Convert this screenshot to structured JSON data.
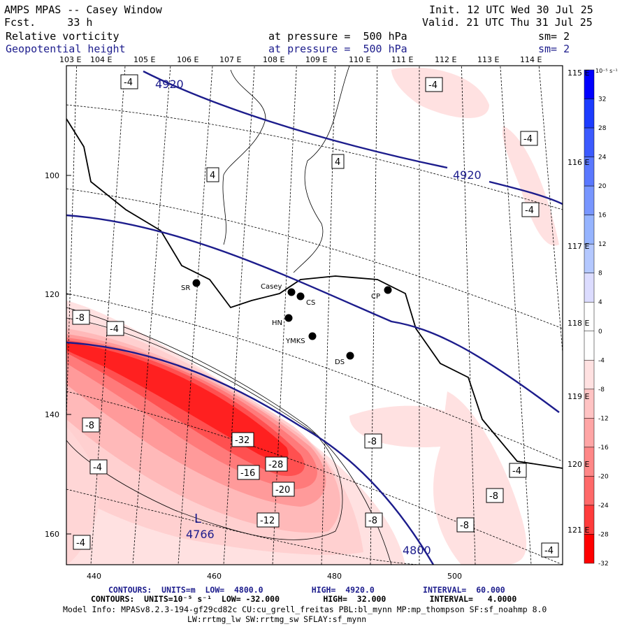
{
  "header": {
    "title": "AMPS MPAS -- Casey Window",
    "forecast": "Fcst.     33 h",
    "init": "Init. 12 UTC Wed 30 Jul 25",
    "valid": "Valid. 21 UTC Thu 31 Jul 25",
    "field1": "Relative vorticity",
    "field1_level": "at pressure =  500 hPa",
    "field1_smooth": "sm= 2",
    "field2": "Geopotential height",
    "field2_level": "at pressure =  500 hPa",
    "field2_smooth": "sm= 2"
  },
  "axes": {
    "top_longitudes": [
      "103 E",
      "104 E",
      "105 E",
      "106 E",
      "107 E",
      "108 E",
      "109 E",
      "110 E",
      "111 E",
      "112 E",
      "113 E",
      "114 E"
    ],
    "right_longitudes": [
      "115 E",
      "116 E",
      "117 E",
      "118 E",
      "119 E",
      "120 E",
      "121 E"
    ],
    "y_ticks": [
      "100",
      "120",
      "140",
      "160"
    ],
    "x_ticks": [
      "440",
      "460",
      "480",
      "500"
    ]
  },
  "colorbar": {
    "unit": "10⁻⁵ s⁻¹",
    "labels": [
      "32",
      "28",
      "24",
      "20",
      "16",
      "12",
      "8",
      "4",
      "0",
      "-4",
      "-8",
      "-12",
      "-16",
      "-20",
      "-24",
      "-28",
      "-32"
    ],
    "colors": [
      "#0000ff",
      "#1c3cff",
      "#3c5aff",
      "#5a78ff",
      "#7896ff",
      "#96b4ff",
      "#b4c8ff",
      "#dcdcff",
      "#ffffff",
      "#ffffff",
      "#ffe1e1",
      "#ffc3c3",
      "#ffa5a5",
      "#ff8787",
      "#ff6969",
      "#ff3c3c",
      "#ff0000"
    ]
  },
  "stations": [
    {
      "name": "SR"
    },
    {
      "name": "Casey"
    },
    {
      "name": "CS"
    },
    {
      "name": "CP"
    },
    {
      "name": "HN"
    },
    {
      "name": "YMKS"
    },
    {
      "name": "DS"
    }
  ],
  "contour_labels": {
    "height": [
      "4920",
      "4920",
      "4800"
    ],
    "vorticity": [
      "-4",
      "-4",
      "-4",
      "-4",
      "4",
      "4",
      "-8",
      "-4",
      "-8",
      "-8",
      "-4",
      "-8",
      "-32",
      "-28",
      "-16",
      "-20",
      "-12",
      "-8",
      "-8",
      "-4",
      "-4",
      "-4"
    ]
  },
  "low_center": {
    "letter": "L",
    "value": "4766"
  },
  "footer": {
    "line1": "CONTOURS:  UNITS=m  LOW=  4800.0          HIGH=  4920.0          INTERVAL=  60.000",
    "line2": "CONTOURS:  UNITS=10⁻⁵ s⁻¹  LOW= -32.000         HIGH=  32.000         INTERVAL=   4.0000",
    "line3": "Model Info: MPASv8.2.3-194-gf29cd82c CU:cu_grell_freitas PBL:bl_mynn MP:mp_thompson SF:sf_noahmp 8.0",
    "line4": "LW:rrtmg_lw SW:rrtmg_sw SFLAY:sf_mynn"
  }
}
